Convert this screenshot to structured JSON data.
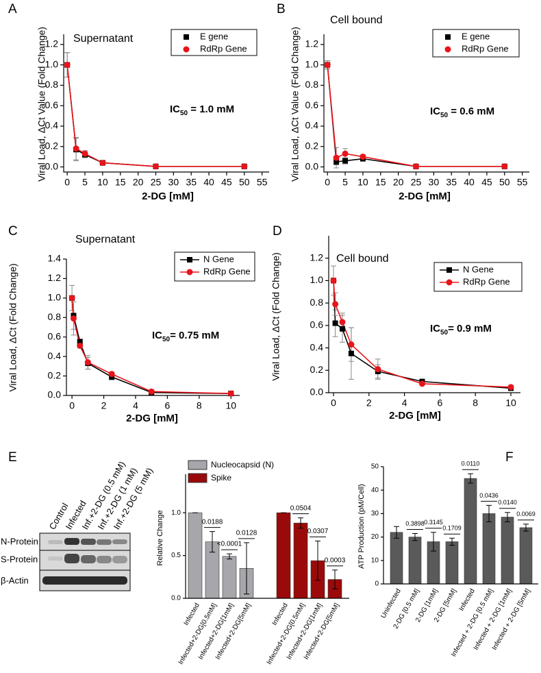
{
  "chart_data": [
    {
      "type": "scatter",
      "label": "A",
      "title": "Supernatant",
      "x_label": "2-DG [mM]",
      "y_label": "Viral Load, ΔCt Value (Fold Change)",
      "annotation": {
        "text": "IC",
        "sub": "50",
        "rest": " = 1.0 mM"
      },
      "x": [
        0,
        2.5,
        5,
        10,
        25,
        50
      ],
      "series": [
        {
          "name": "E gene",
          "color": "#000000",
          "marker": "square",
          "values": [
            1.0,
            0.17,
            0.12,
            0.04,
            0.005,
            0.005
          ],
          "errors": [
            0.12,
            0.11,
            0.03,
            0.02,
            0.01,
            0.01
          ]
        },
        {
          "name": "RdRp Gene",
          "color": "#e8141b",
          "marker": "circle",
          "values": [
            1.0,
            0.18,
            0.13,
            0.04,
            0.005,
            0.005
          ],
          "errors": [
            0.12,
            0.11,
            0.03,
            0.02,
            0.01,
            0.01
          ]
        }
      ],
      "xlim": [
        -1,
        57
      ],
      "ylim": [
        -0.05,
        1.3
      ],
      "xticks": [
        0,
        5,
        10,
        15,
        20,
        25,
        30,
        35,
        40,
        45,
        50,
        55
      ],
      "yticks": [
        {
          "value": 0,
          "label": "0.0"
        },
        0.2,
        0.4,
        0.6,
        0.8,
        {
          "value": 1,
          "label": "1.0"
        },
        1.2
      ],
      "legend": "upper right"
    },
    {
      "type": "scatter",
      "label": "B",
      "title": "Cell bound",
      "x_label": "2-DG [mM]",
      "y_label": "Viral Load, ΔCt Value (Fold Change)",
      "annotation": {
        "text": "IC",
        "sub": "50",
        "rest": " = 0.6 mM"
      },
      "x": [
        0,
        2.5,
        5,
        10,
        25,
        50
      ],
      "series": [
        {
          "name": "E gene",
          "color": "#000000",
          "marker": "square",
          "values": [
            1.0,
            0.05,
            0.06,
            0.08,
            0.005,
            0.005
          ],
          "errors": [
            0.04,
            0.03,
            0.03,
            0.02,
            0.01,
            0.01
          ]
        },
        {
          "name": "RdRp Gene",
          "color": "#e8141b",
          "marker": "circle",
          "values": [
            1.0,
            0.09,
            0.13,
            0.1,
            0.005,
            0.005
          ],
          "errors": [
            0.04,
            0.1,
            0.05,
            0.02,
            0.01,
            0.01
          ]
        }
      ],
      "xlim": [
        -1,
        57
      ],
      "ylim": [
        -0.05,
        1.3
      ],
      "xticks": [
        0,
        5,
        10,
        15,
        20,
        25,
        30,
        35,
        40,
        45,
        50,
        55
      ],
      "yticks": [
        {
          "value": 0,
          "label": "0.0"
        },
        0.2,
        0.4,
        0.6,
        0.8,
        {
          "value": 1,
          "label": "1.0"
        },
        1.2
      ],
      "legend": "upper right"
    },
    {
      "type": "line",
      "label": "C",
      "title": "Supernatant",
      "x_label": "2-DG [mM]",
      "y_label": "Viral Load, ΔCt (Fold Change)",
      "annotation": {
        "text": "IC",
        "sub": "50",
        "rest": "= 0.75 mM"
      },
      "x": [
        0,
        0.1,
        0.5,
        1,
        2.5,
        5,
        10
      ],
      "series": [
        {
          "name": "N Gene",
          "color": "#000000",
          "marker": "square",
          "values": [
            1.0,
            0.82,
            0.55,
            0.33,
            0.19,
            0.03,
            0.02
          ],
          "errors": [
            0.0,
            0.14,
            0.03,
            0.06,
            0.03,
            0.01,
            0.01
          ]
        },
        {
          "name": "RdRp Gene",
          "color": "#e8141b",
          "marker": "circle",
          "values": [
            1.0,
            0.79,
            0.51,
            0.34,
            0.22,
            0.04,
            0.02
          ],
          "errors": [
            0.13,
            0.17,
            0.02,
            0.07,
            0.02,
            0.01,
            0.01
          ]
        }
      ],
      "xlim": [
        -0.35,
        10.55
      ],
      "ylim": [
        0,
        1.4
      ],
      "xticks": [
        0,
        2,
        4,
        6,
        8,
        10
      ],
      "yticks": [
        {
          "value": 0,
          "label": "0.0"
        },
        0.2,
        0.4,
        0.6,
        0.8,
        {
          "value": 1,
          "label": "1.0"
        },
        1.2,
        1.4
      ],
      "legend": "upper right"
    },
    {
      "type": "line",
      "label": "D",
      "title": "Cell bound",
      "x_label": "2-DG [mM]",
      "y_label": "Viral Load, ΔCt (Fold Change)",
      "annotation": {
        "text": "IC",
        "sub": "50",
        "rest": "= 0.9 mM"
      },
      "x": [
        0,
        0.1,
        0.5,
        1,
        2.5,
        5,
        10
      ],
      "series": [
        {
          "name": "N Gene",
          "color": "#000000",
          "marker": "square",
          "values": [
            1.0,
            0.62,
            0.57,
            0.35,
            0.19,
            0.1,
            0.04
          ],
          "errors": [
            0.0,
            0.12,
            0.12,
            0.23,
            0.06,
            0.01,
            0.01
          ]
        },
        {
          "name": "RdRp Gene",
          "color": "#e8141b",
          "marker": "circle",
          "values": [
            1.0,
            0.79,
            0.63,
            0.43,
            0.21,
            0.08,
            0.05
          ],
          "errors": [
            0.13,
            0.1,
            0.08,
            0.15,
            0.09,
            0.01,
            0.01
          ]
        }
      ],
      "xlim": [
        -0.27,
        10.54
      ],
      "ylim": [
        0,
        1.4
      ],
      "xticks": [
        0,
        2,
        4,
        6,
        8,
        10
      ],
      "yticks": [
        {
          "value": 0,
          "label": "0.0"
        },
        0.2,
        0.4,
        0.6,
        0.8,
        {
          "value": 1,
          "label": "1.0"
        },
        1.2
      ],
      "legend": "upper right"
    },
    {
      "type": "bar",
      "label": "E",
      "y_label": "Relative Change",
      "categories": [
        "Infected",
        "Infected+2-DG[0.5mM]",
        "Infected+2-DG[1mM]",
        "Infected+2-DG[5mM]",
        "Infected",
        "Infected+2-DG[0.5mM]",
        "Infected+2-DG[1mM]",
        "Infected+2-DG[5mM]"
      ],
      "series": [
        {
          "name": "Nucleocapsid (N)",
          "color": "#a6a6ab",
          "values": [
            1.0,
            0.66,
            0.49,
            0.35,
            null,
            null,
            null,
            null
          ],
          "errors": [
            0,
            0.12,
            0.03,
            0.3,
            null,
            null,
            null,
            null
          ]
        },
        {
          "name": "Spike",
          "color": "#9b0a0a",
          "values": [
            null,
            null,
            null,
            null,
            1.0,
            0.88,
            0.44,
            0.22
          ],
          "errors": [
            null,
            null,
            null,
            null,
            0,
            0.06,
            0.23,
            0.11
          ]
        }
      ],
      "p_values": [
        null,
        "0.0188",
        "<0.0001",
        "0.0128",
        null,
        "0.0504",
        "0.0307",
        "0.0003"
      ],
      "ylim": [
        0,
        1.45
      ],
      "yticks": [
        {
          "value": 0,
          "label": "0.0"
        },
        0.5,
        {
          "value": 1,
          "label": "1.0"
        }
      ],
      "legend": "upper left"
    },
    {
      "type": "bar",
      "label": "F",
      "y_label": "ATP Production (pM/Cell)",
      "categories": [
        "Uninfected",
        "2-DG [0.5 mM]",
        "2-DG [1mM]",
        "2-DG [5mM]",
        "Infected",
        "Infected + 2-DG [0.5 mM]",
        "Infected + 2-DG [1mM]",
        "Infected + 2-DG [5mM]"
      ],
      "series": [
        {
          "name": null,
          "color": "#5a5a5a",
          "values": [
            22,
            20,
            18,
            18,
            45,
            30,
            28.5,
            24
          ],
          "errors": [
            2.5,
            1.5,
            4,
            1.5,
            2,
            3.5,
            2,
            1.5
          ]
        }
      ],
      "p_values": [
        null,
        "0.3898",
        "0.3145",
        "0.1709",
        "0.0110",
        "0.0436",
        "0.0140",
        "0.0069"
      ],
      "ylim": [
        0,
        50
      ],
      "yticks": [
        0,
        10,
        20,
        30,
        40,
        50
      ]
    }
  ],
  "blot": {
    "lanes": [
      "Control",
      "Infected",
      "Inf.+2-DG (0.5 mM)",
      "Inf.+2-DG (1 mM)",
      "Inf.+2-DG (5 mM)"
    ],
    "rows": [
      "N-Protein",
      "S-Protein",
      "β-Actin"
    ]
  }
}
